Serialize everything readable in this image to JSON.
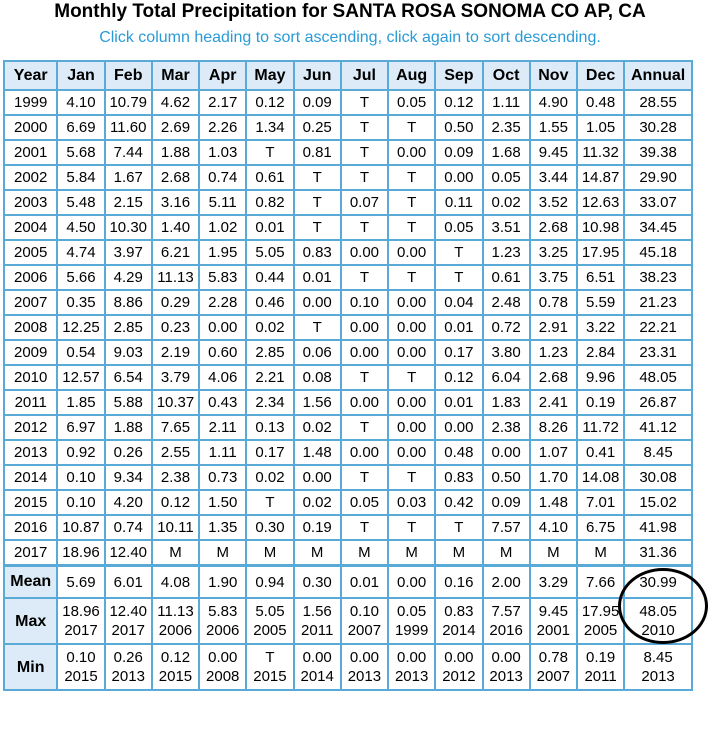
{
  "title": "Monthly Total Precipitation for SANTA ROSA SONOMA CO AP, CA",
  "subtitle": "Click column heading to sort ascending, click again to sort descending.",
  "headers": [
    "Year",
    "Jan",
    "Feb",
    "Mar",
    "Apr",
    "May",
    "Jun",
    "Jul",
    "Aug",
    "Sep",
    "Oct",
    "Nov",
    "Dec",
    "Annual"
  ],
  "rows": [
    [
      "1999",
      "4.10",
      "10.79",
      "4.62",
      "2.17",
      "0.12",
      "0.09",
      "T",
      "0.05",
      "0.12",
      "1.11",
      "4.90",
      "0.48",
      "28.55"
    ],
    [
      "2000",
      "6.69",
      "11.60",
      "2.69",
      "2.26",
      "1.34",
      "0.25",
      "T",
      "T",
      "0.50",
      "2.35",
      "1.55",
      "1.05",
      "30.28"
    ],
    [
      "2001",
      "5.68",
      "7.44",
      "1.88",
      "1.03",
      "T",
      "0.81",
      "T",
      "0.00",
      "0.09",
      "1.68",
      "9.45",
      "11.32",
      "39.38"
    ],
    [
      "2002",
      "5.84",
      "1.67",
      "2.68",
      "0.74",
      "0.61",
      "T",
      "T",
      "T",
      "0.00",
      "0.05",
      "3.44",
      "14.87",
      "29.90"
    ],
    [
      "2003",
      "5.48",
      "2.15",
      "3.16",
      "5.11",
      "0.82",
      "T",
      "0.07",
      "T",
      "0.11",
      "0.02",
      "3.52",
      "12.63",
      "33.07"
    ],
    [
      "2004",
      "4.50",
      "10.30",
      "1.40",
      "1.02",
      "0.01",
      "T",
      "T",
      "T",
      "0.05",
      "3.51",
      "2.68",
      "10.98",
      "34.45"
    ],
    [
      "2005",
      "4.74",
      "3.97",
      "6.21",
      "1.95",
      "5.05",
      "0.83",
      "0.00",
      "0.00",
      "T",
      "1.23",
      "3.25",
      "17.95",
      "45.18"
    ],
    [
      "2006",
      "5.66",
      "4.29",
      "11.13",
      "5.83",
      "0.44",
      "0.01",
      "T",
      "T",
      "T",
      "0.61",
      "3.75",
      "6.51",
      "38.23"
    ],
    [
      "2007",
      "0.35",
      "8.86",
      "0.29",
      "2.28",
      "0.46",
      "0.00",
      "0.10",
      "0.00",
      "0.04",
      "2.48",
      "0.78",
      "5.59",
      "21.23"
    ],
    [
      "2008",
      "12.25",
      "2.85",
      "0.23",
      "0.00",
      "0.02",
      "T",
      "0.00",
      "0.00",
      "0.01",
      "0.72",
      "2.91",
      "3.22",
      "22.21"
    ],
    [
      "2009",
      "0.54",
      "9.03",
      "2.19",
      "0.60",
      "2.85",
      "0.06",
      "0.00",
      "0.00",
      "0.17",
      "3.80",
      "1.23",
      "2.84",
      "23.31"
    ],
    [
      "2010",
      "12.57",
      "6.54",
      "3.79",
      "4.06",
      "2.21",
      "0.08",
      "T",
      "T",
      "0.12",
      "6.04",
      "2.68",
      "9.96",
      "48.05"
    ],
    [
      "2011",
      "1.85",
      "5.88",
      "10.37",
      "0.43",
      "2.34",
      "1.56",
      "0.00",
      "0.00",
      "0.01",
      "1.83",
      "2.41",
      "0.19",
      "26.87"
    ],
    [
      "2012",
      "6.97",
      "1.88",
      "7.65",
      "2.11",
      "0.13",
      "0.02",
      "T",
      "0.00",
      "0.00",
      "2.38",
      "8.26",
      "11.72",
      "41.12"
    ],
    [
      "2013",
      "0.92",
      "0.26",
      "2.55",
      "1.11",
      "0.17",
      "1.48",
      "0.00",
      "0.00",
      "0.48",
      "0.00",
      "1.07",
      "0.41",
      "8.45"
    ],
    [
      "2014",
      "0.10",
      "9.34",
      "2.38",
      "0.73",
      "0.02",
      "0.00",
      "T",
      "T",
      "0.83",
      "0.50",
      "1.70",
      "14.08",
      "30.08"
    ],
    [
      "2015",
      "0.10",
      "4.20",
      "0.12",
      "1.50",
      "T",
      "0.02",
      "0.05",
      "0.03",
      "0.42",
      "0.09",
      "1.48",
      "7.01",
      "15.02"
    ],
    [
      "2016",
      "10.87",
      "0.74",
      "10.11",
      "1.35",
      "0.30",
      "0.19",
      "T",
      "T",
      "T",
      "7.57",
      "4.10",
      "6.75",
      "41.98"
    ],
    [
      "2017",
      "18.96",
      "12.40",
      "M",
      "M",
      "M",
      "M",
      "M",
      "M",
      "M",
      "M",
      "M",
      "M",
      "31.36"
    ]
  ],
  "mean": {
    "label": "Mean",
    "values": [
      "5.69",
      "6.01",
      "4.08",
      "1.90",
      "0.94",
      "0.30",
      "0.01",
      "0.00",
      "0.16",
      "2.00",
      "3.29",
      "7.66",
      "30.99"
    ]
  },
  "max": {
    "label": "Max",
    "values": [
      "18.96",
      "12.40",
      "11.13",
      "5.83",
      "5.05",
      "1.56",
      "0.10",
      "0.05",
      "0.83",
      "7.57",
      "9.45",
      "17.95",
      "48.05"
    ],
    "years": [
      "2017",
      "2017",
      "2006",
      "2006",
      "2005",
      "2011",
      "2007",
      "1999",
      "2014",
      "2016",
      "2001",
      "2005",
      "2010"
    ]
  },
  "min": {
    "label": "Min",
    "values": [
      "0.10",
      "0.26",
      "0.12",
      "0.00",
      "T",
      "0.00",
      "0.00",
      "0.00",
      "0.00",
      "0.00",
      "0.78",
      "0.19",
      "8.45"
    ],
    "years": [
      "2015",
      "2013",
      "2015",
      "2008",
      "2015",
      "2014",
      "2013",
      "2013",
      "2012",
      "2013",
      "2007",
      "2011",
      "2013"
    ]
  },
  "colors": {
    "header_bg": "#dcebf7",
    "border": "#5aaad8",
    "subtitle": "#2a9bd6",
    "annotation_circle": "#000000"
  }
}
